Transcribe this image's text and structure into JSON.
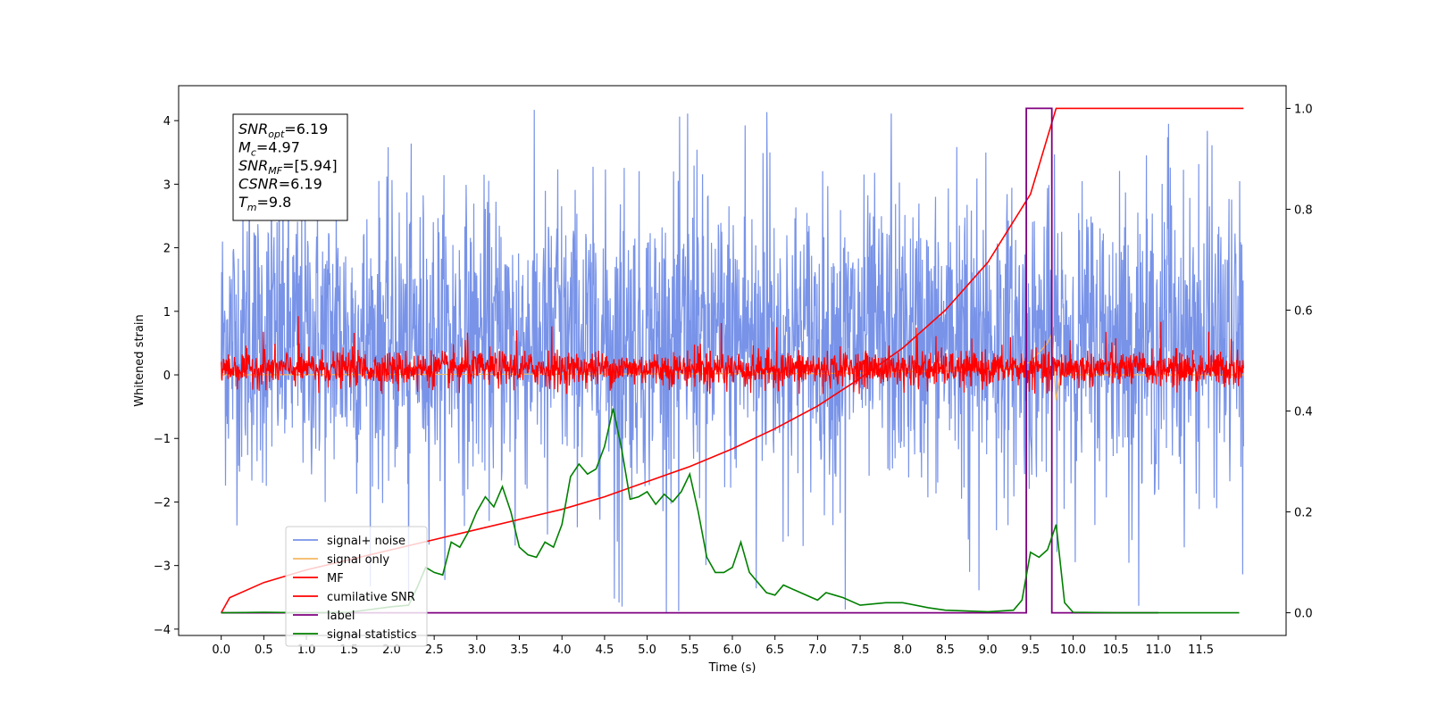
{
  "chart_data": {
    "type": "line",
    "title": "",
    "xlabel": "Time (s)",
    "ylabel": "Whitened strain",
    "xlim": [
      -0.5,
      12.5
    ],
    "ylim_left": [
      -4.1,
      4.55
    ],
    "ylim_right": [
      -0.045,
      1.045
    ],
    "x_ticks": [
      0.0,
      0.5,
      1.0,
      1.5,
      2.0,
      2.5,
      3.0,
      3.5,
      4.0,
      4.5,
      5.0,
      5.5,
      6.0,
      6.5,
      7.0,
      7.5,
      8.0,
      8.5,
      9.0,
      9.5,
      10.0,
      10.5,
      11.0,
      11.5
    ],
    "x_tick_labels": [
      "0.0",
      "0.5",
      "1.0",
      "1.5",
      "2.0",
      "2.5",
      "3.0",
      "3.5",
      "4.0",
      "4.5",
      "5.0",
      "5.5",
      "6.0",
      "6.5",
      "7.0",
      "7.5",
      "8.0",
      "8.5",
      "9.0",
      "9.5",
      "10.0",
      "10.5",
      "11.0",
      "11.5"
    ],
    "y_left_ticks": [
      4,
      3,
      2,
      1,
      0,
      -1,
      -2,
      -3,
      -4
    ],
    "y_left_tick_labels": [
      "4",
      "3",
      "2",
      "1",
      "0",
      "−1",
      "−2",
      "−3",
      "−4"
    ],
    "y_right_ticks": [
      1.0,
      0.8,
      0.6,
      0.4,
      0.2,
      0.0
    ],
    "y_right_tick_labels": [
      "1.0",
      "0.8",
      "0.6",
      "0.4",
      "0.2",
      "0.0"
    ],
    "grid": false,
    "legend_position": "lower-left",
    "info_box": {
      "position": "top-left",
      "lines": [
        {
          "sym": "SNR",
          "sub": "opt",
          "val": "=6.19"
        },
        {
          "sym": "M",
          "sub": "c",
          "val": "=4.97"
        },
        {
          "sym": "SNR",
          "sub": "MF",
          "val": "=[5.94]"
        },
        {
          "sym": "CSNR",
          "sub": "",
          "val": "=6.19"
        },
        {
          "sym": "T",
          "sub": "m",
          "val": "=9.8"
        }
      ]
    },
    "series": [
      {
        "name": "signal+ noise",
        "axis": "left",
        "color": "#7893e8",
        "x_range": [
          0.0,
          12.0
        ],
        "typical_range": [
          -2.1,
          3.2
        ],
        "max": 4.17,
        "min": -3.75
      },
      {
        "name": "signal only",
        "axis": "left",
        "color": "#f5b862",
        "x": [
          0.0,
          7.0,
          7.5,
          8.0,
          8.5,
          9.0,
          9.3,
          9.5,
          9.6,
          9.7,
          9.75,
          9.8,
          9.85,
          10.0,
          12.0
        ],
        "y": [
          0.0,
          0.02,
          0.03,
          0.05,
          0.06,
          0.08,
          0.12,
          0.2,
          0.35,
          0.5,
          0.65,
          -0.4,
          0.0,
          0.0,
          0.0
        ]
      },
      {
        "name": "MF",
        "axis": "left",
        "color": "#ff0000",
        "x_range": [
          0.0,
          12.0
        ],
        "typical_range": [
          -0.25,
          0.45
        ],
        "max": 0.95,
        "min": -0.3
      },
      {
        "name": "cumilative SNR",
        "axis": "right",
        "color": "#ff0000",
        "x": [
          0.0,
          0.1,
          0.5,
          1.0,
          1.5,
          2.0,
          2.5,
          3.0,
          3.5,
          4.0,
          4.5,
          5.0,
          5.5,
          6.0,
          6.5,
          7.0,
          7.5,
          8.0,
          8.5,
          9.0,
          9.5,
          9.8,
          12.0
        ],
        "y": [
          0.0,
          0.03,
          0.06,
          0.085,
          0.105,
          0.125,
          0.145,
          0.165,
          0.185,
          0.205,
          0.23,
          0.26,
          0.29,
          0.325,
          0.365,
          0.41,
          0.465,
          0.525,
          0.6,
          0.695,
          0.83,
          1.0,
          1.0
        ]
      },
      {
        "name": "label",
        "axis": "right",
        "color": "#800080",
        "x": [
          0.0,
          9.45,
          9.45,
          9.75,
          9.75,
          11.0
        ],
        "y": [
          0.0,
          0.0,
          1.0,
          1.0,
          0.0,
          0.0
        ]
      },
      {
        "name": "signal statistics",
        "axis": "right",
        "color": "#008000",
        "x": [
          0.0,
          0.5,
          1.0,
          1.5,
          2.0,
          2.2,
          2.3,
          2.4,
          2.5,
          2.6,
          2.7,
          2.8,
          2.9,
          3.0,
          3.1,
          3.2,
          3.3,
          3.4,
          3.5,
          3.6,
          3.7,
          3.8,
          3.9,
          4.0,
          4.1,
          4.2,
          4.3,
          4.4,
          4.5,
          4.6,
          4.7,
          4.8,
          4.9,
          5.0,
          5.1,
          5.2,
          5.3,
          5.4,
          5.5,
          5.6,
          5.7,
          5.8,
          5.9,
          6.0,
          6.1,
          6.2,
          6.3,
          6.4,
          6.5,
          6.6,
          6.8,
          7.0,
          7.1,
          7.2,
          7.3,
          7.5,
          7.8,
          8.0,
          8.3,
          8.5,
          9.0,
          9.3,
          9.4,
          9.5,
          9.6,
          9.7,
          9.8,
          9.9,
          10.0,
          10.5,
          11.0,
          11.5,
          11.95
        ],
        "y": [
          0.0,
          0.001,
          0.0,
          0.001,
          0.012,
          0.015,
          0.05,
          0.09,
          0.08,
          0.075,
          0.14,
          0.13,
          0.16,
          0.2,
          0.23,
          0.21,
          0.25,
          0.2,
          0.13,
          0.115,
          0.11,
          0.14,
          0.13,
          0.175,
          0.27,
          0.295,
          0.275,
          0.285,
          0.33,
          0.405,
          0.325,
          0.225,
          0.23,
          0.24,
          0.215,
          0.235,
          0.22,
          0.24,
          0.275,
          0.2,
          0.11,
          0.08,
          0.08,
          0.09,
          0.14,
          0.08,
          0.06,
          0.04,
          0.035,
          0.055,
          0.04,
          0.025,
          0.04,
          0.035,
          0.03,
          0.015,
          0.02,
          0.02,
          0.01,
          0.005,
          0.002,
          0.005,
          0.025,
          0.12,
          0.11,
          0.125,
          0.175,
          0.02,
          0.001,
          0.0,
          0.0,
          0.0,
          0.0
        ]
      }
    ]
  }
}
